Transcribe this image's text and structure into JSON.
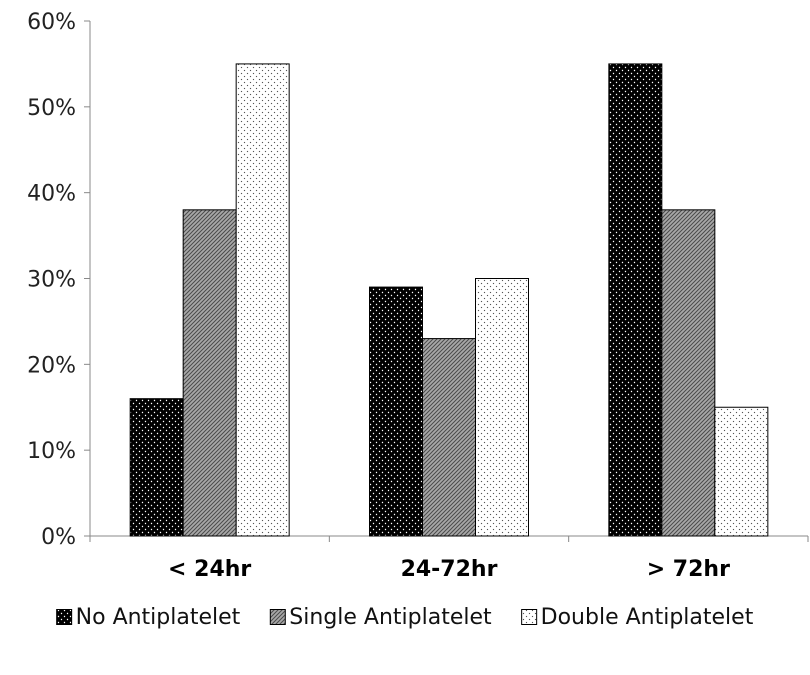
{
  "chart_data": {
    "type": "bar",
    "categories": [
      "< 24hr",
      "24-72hr",
      "> 72hr"
    ],
    "series": [
      {
        "name": "No Antiplatelet",
        "values": [
          16,
          29,
          55
        ],
        "pattern": "dark-dots",
        "color": "#000000"
      },
      {
        "name": "Single Antiplatelet",
        "values": [
          38,
          23,
          38
        ],
        "pattern": "diagonal-hatch",
        "color": "#8a8a8a"
      },
      {
        "name": "Double Antiplatelet",
        "values": [
          55,
          30,
          15
        ],
        "pattern": "light-dots",
        "color": "#ffffff"
      }
    ],
    "y_ticks": [
      "0%",
      "10%",
      "20%",
      "30%",
      "40%",
      "50%",
      "60%"
    ],
    "ylim": [
      0,
      60
    ],
    "unit": "%",
    "title": "",
    "xlabel": "",
    "ylabel": "",
    "grid": false,
    "legend_position": "bottom"
  }
}
